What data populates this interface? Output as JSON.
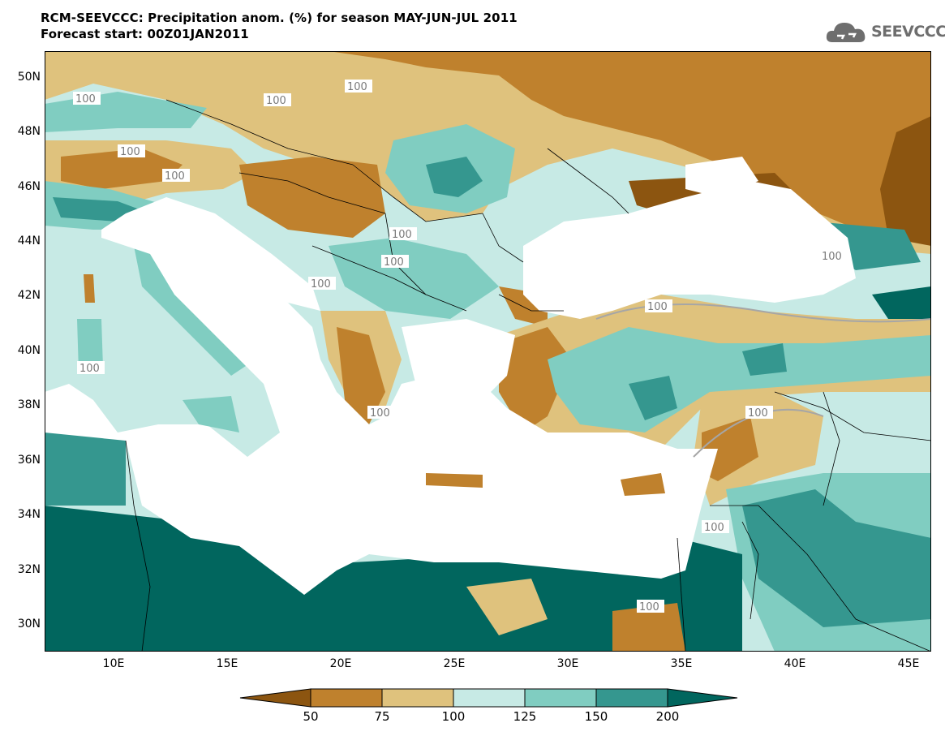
{
  "title": {
    "line1": "RCM-SEEVCCC: Precipitation anom. (%) for season MAY-JUN-JUL 2011",
    "line2": "Forecast start: 00Z01JAN2011"
  },
  "logo": {
    "text": "SEEVCCC",
    "icon": "cloud-icon"
  },
  "map": {
    "lat_labels": [
      "50N",
      "48N",
      "46N",
      "44N",
      "42N",
      "40N",
      "38N",
      "36N",
      "34N",
      "32N",
      "30N"
    ],
    "lon_labels": [
      "10E",
      "15E",
      "20E",
      "25E",
      "30E",
      "35E",
      "40E",
      "45E"
    ],
    "contour_label": "100",
    "colors": {
      "lt50": "#8c5510",
      "c50_75": "#bf812d",
      "c75_100": "#dfc27d",
      "c100_125": "#c7eae5",
      "c125_150": "#80cdc1",
      "c150_200": "#35978f",
      "gt200": "#01665e",
      "sea": "#ffffff"
    }
  },
  "colorbar": {
    "labels": [
      "50",
      "75",
      "100",
      "125",
      "150",
      "200"
    ]
  }
}
